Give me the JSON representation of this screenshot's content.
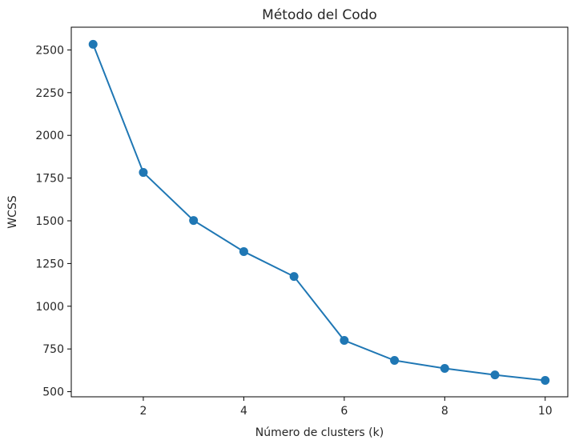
{
  "chart_data": {
    "type": "line",
    "title": "Método del Codo",
    "xlabel": "Número de clusters (k)",
    "ylabel": "WCSS",
    "x": [
      1,
      2,
      3,
      4,
      5,
      6,
      7,
      8,
      9,
      10
    ],
    "series": [
      {
        "name": "WCSS",
        "values": [
          2533,
          1783,
          1502,
          1320,
          1174,
          800,
          683,
          636,
          598,
          566
        ],
        "color": "#1f77b4",
        "marker": "circle"
      }
    ],
    "xlim": [
      0.566,
      10.45
    ],
    "ylim": [
      470,
      2633
    ],
    "xticks": [
      2,
      4,
      6,
      8,
      10
    ],
    "xtick_labels": [
      "2",
      "4",
      "6",
      "8",
      "10"
    ],
    "yticks": [
      500,
      750,
      1000,
      1250,
      1500,
      1750,
      2000,
      2250,
      2500
    ],
    "ytick_labels": [
      "500",
      "750",
      "1000",
      "1250",
      "1500",
      "1750",
      "2000",
      "2250",
      "2500"
    ],
    "grid": false,
    "legend": "none"
  }
}
